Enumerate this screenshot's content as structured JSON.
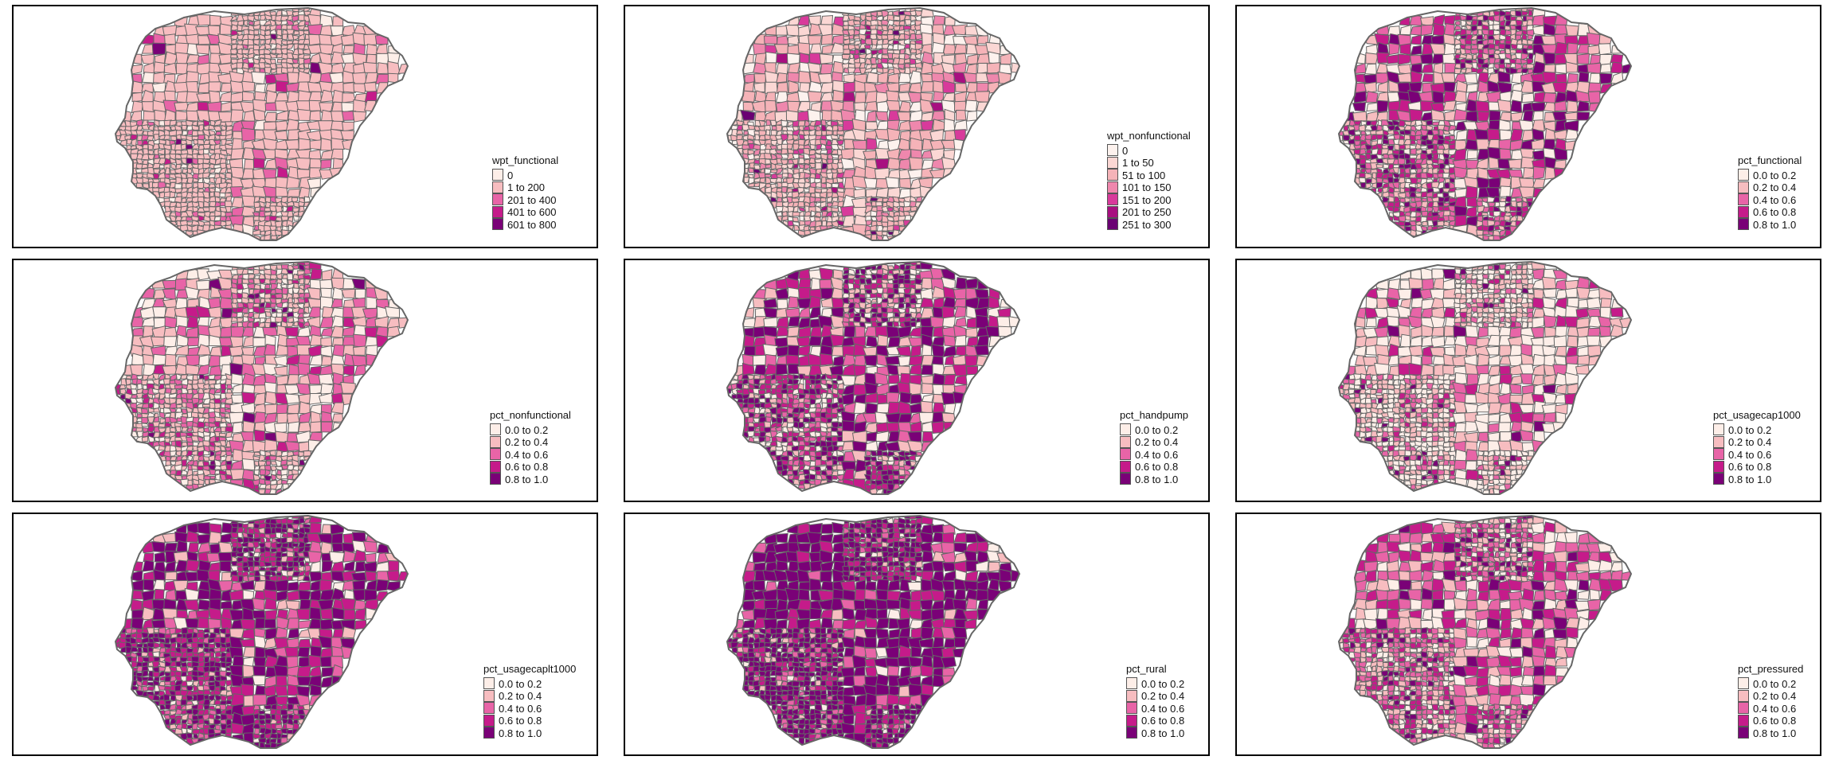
{
  "colors": {
    "border": "#666666",
    "palette_5": [
      "#feebe2",
      "#fbb4b9",
      "#f768a1",
      "#c51b8a",
      "#7a0177"
    ],
    "palette_7": [
      "#feebe2",
      "#fcc5c0",
      "#fa9fb5",
      "#f768a1",
      "#dd3497",
      "#ae017e",
      "#7a0177"
    ]
  },
  "panels": [
    {
      "variable": "wpt_functional",
      "legend_title": "wpt_functional",
      "classes": [
        "0",
        "1 to 200",
        "201 to 400",
        "401 to 600",
        "601 to 800"
      ],
      "class_colors": [
        "#fdeee8",
        "#f7bdc0",
        "#e864a7",
        "#c51b8a",
        "#7a0177"
      ]
    },
    {
      "variable": "wpt_nonfunctional",
      "legend_title": "wpt_nonfunctional",
      "classes": [
        "0",
        "1 to 50",
        "51 to 100",
        "101 to 150",
        "151 to 200",
        "201 to 250",
        "251 to 300"
      ],
      "class_colors": [
        "#fdf2ee",
        "#fbd7d4",
        "#f5b3b8",
        "#ef87ad",
        "#d83a9b",
        "#a80f80",
        "#6a0173"
      ]
    },
    {
      "variable": "pct_functional",
      "legend_title": "pct_functional",
      "classes": [
        "0.0 to 0.2",
        "0.2 to 0.4",
        "0.4 to 0.6",
        "0.6 to 0.8",
        "0.8 to 1.0"
      ],
      "class_colors": [
        "#fdeee8",
        "#f7bdc0",
        "#e864a7",
        "#c51b8a",
        "#7a0177"
      ]
    },
    {
      "variable": "pct_nonfunctional",
      "legend_title": "pct_nonfunctional",
      "classes": [
        "0.0 to 0.2",
        "0.2 to 0.4",
        "0.4 to 0.6",
        "0.6 to 0.8",
        "0.8 to 1.0"
      ],
      "class_colors": [
        "#fdeee8",
        "#f7bdc0",
        "#e864a7",
        "#c51b8a",
        "#7a0177"
      ]
    },
    {
      "variable": "pct_handpump",
      "legend_title": "pct_handpump",
      "classes": [
        "0.0 to 0.2",
        "0.2 to 0.4",
        "0.4 to 0.6",
        "0.6 to 0.8",
        "0.8 to 1.0"
      ],
      "class_colors": [
        "#fdeee8",
        "#f7bdc0",
        "#e864a7",
        "#c51b8a",
        "#7a0177"
      ]
    },
    {
      "variable": "pct_usagecap1000",
      "legend_title": "pct_usagecap1000",
      "classes": [
        "0.0 to 0.2",
        "0.2 to 0.4",
        "0.4 to 0.6",
        "0.6 to 0.8",
        "0.8 to 1.0"
      ],
      "class_colors": [
        "#fdeee8",
        "#f7bdc0",
        "#e864a7",
        "#c51b8a",
        "#7a0177"
      ]
    },
    {
      "variable": "pct_usagecaplt1000",
      "legend_title": "pct_usagecaplt1000",
      "classes": [
        "0.0 to 0.2",
        "0.2 to 0.4",
        "0.4 to 0.6",
        "0.6 to 0.8",
        "0.8 to 1.0"
      ],
      "class_colors": [
        "#fdeee8",
        "#f7bdc0",
        "#e864a7",
        "#c51b8a",
        "#7a0177"
      ]
    },
    {
      "variable": "pct_rural",
      "legend_title": "pct_rural",
      "classes": [
        "0.0 to 0.2",
        "0.2 to 0.4",
        "0.4 to 0.6",
        "0.6 to 0.8",
        "0.8 to 1.0"
      ],
      "class_colors": [
        "#fdeee8",
        "#f7bdc0",
        "#e864a7",
        "#c51b8a",
        "#7a0177"
      ]
    },
    {
      "variable": "pct_pressured",
      "legend_title": "pct_pressured",
      "classes": [
        "0.0 to 0.2",
        "0.2 to 0.4",
        "0.4 to 0.6",
        "0.6 to 0.8",
        "0.8 to 1.0"
      ],
      "class_colors": [
        "#fdeee8",
        "#f7bdc0",
        "#e864a7",
        "#c51b8a",
        "#7a0177"
      ]
    }
  ]
}
